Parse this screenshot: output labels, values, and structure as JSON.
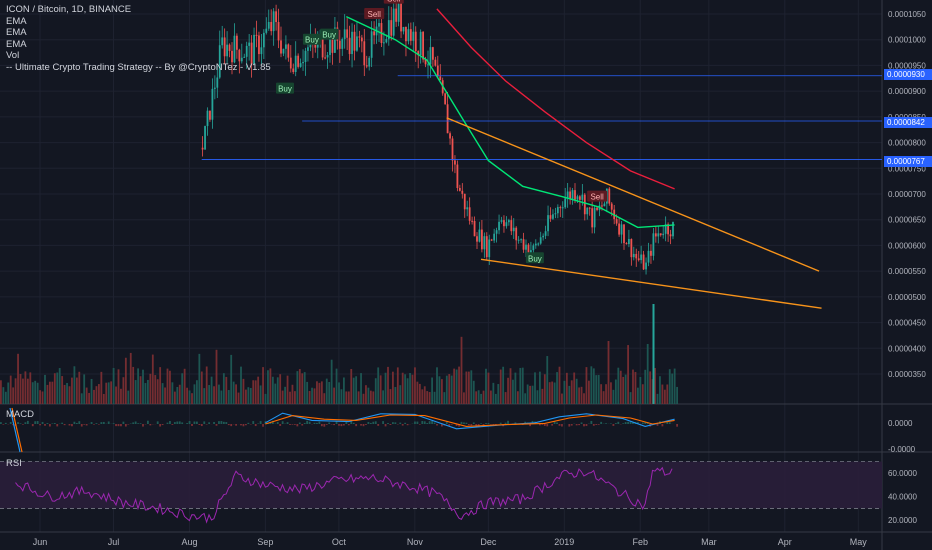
{
  "legend": {
    "symbol": "ICON / Bitcoin, 1D, BINANCE",
    "ema1": "EMA",
    "ema2": "EMA",
    "ema3": "EMA",
    "vol": "Vol",
    "strategy": "-- Ultimate Crypto Trading Strategy -- By @CryptoNTez - V1.85"
  },
  "panes": {
    "macd_label": "MACD",
    "rsi_label": "RSI"
  },
  "price_tags": [
    {
      "value": "0.0000930",
      "price": 9.3e-05
    },
    {
      "value": "0.0000842",
      "price": 8.42e-05
    },
    {
      "value": "0.0000767",
      "price": 7.67e-05
    }
  ],
  "colors": {
    "background": "#131722",
    "bull": "#26a69a",
    "bear": "#ef5350",
    "ema_fast": "#00e676",
    "ema_slow": "#e91e3c",
    "trendline": "#f7931a",
    "hline": "#2962ff",
    "macd": "#2196f3",
    "signal": "#ff6d00",
    "rsi": "#9c27b0",
    "rsi_band": "#2a1e3a"
  },
  "chart_data": [
    {
      "type": "candlestick",
      "title": "ICON / Bitcoin, 1D, BINANCE",
      "x_ticks": [
        "Jun",
        "Jul",
        "Aug",
        "Sep",
        "Oct",
        "Nov",
        "Dec",
        "2019",
        "Feb",
        "Mar",
        "Apr",
        "May"
      ],
      "y_ticks": [
        3.5e-05,
        4e-05,
        4.5e-05,
        5e-05,
        5.5e-05,
        6e-05,
        6.5e-05,
        7e-05,
        7.5e-05,
        8e-05,
        8.5e-05,
        9e-05,
        9.5e-05,
        0.0001,
        0.000105
      ],
      "y_tick_labels": [
        "0.0000350",
        "0.0000400",
        "0.0000450",
        "0.0000500",
        "0.0000550",
        "0.0000600",
        "0.0000650",
        "0.0000700",
        "0.0000750",
        "0.0000800",
        "0.0000850",
        "0.0000900",
        "0.0000950",
        "0.0001000",
        "0.0001050"
      ],
      "ylim": [
        3.25e-05,
        0.000108
      ],
      "close_path": [
        {
          "date": "2018-08-06",
          "close": 7.9e-05
        },
        {
          "date": "2018-08-14",
          "close": 9.9e-05
        },
        {
          "date": "2018-08-26",
          "close": 9.75e-05
        },
        {
          "date": "2018-09-04",
          "close": 0.000103
        },
        {
          "date": "2018-09-10",
          "close": 9.6e-05
        },
        {
          "date": "2018-09-20",
          "close": 9.85e-05
        },
        {
          "date": "2018-10-04",
          "close": 0.0001005
        },
        {
          "date": "2018-10-12",
          "close": 9.75e-05
        },
        {
          "date": "2018-10-24",
          "close": 0.000105
        },
        {
          "date": "2018-11-02",
          "close": 9.95e-05
        },
        {
          "date": "2018-11-08",
          "close": 9.5e-05
        },
        {
          "date": "2018-11-13",
          "close": 8.6e-05
        },
        {
          "date": "2018-11-18",
          "close": 7.2e-05
        },
        {
          "date": "2018-11-24",
          "close": 6.4e-05
        },
        {
          "date": "2018-11-30",
          "close": 5.95e-05
        },
        {
          "date": "2018-12-06",
          "close": 6.6e-05
        },
        {
          "date": "2018-12-12",
          "close": 6.15e-05
        },
        {
          "date": "2018-12-19",
          "close": 5.9e-05
        },
        {
          "date": "2018-12-25",
          "close": 6.4e-05
        },
        {
          "date": "2018-12-31",
          "close": 6.9e-05
        },
        {
          "date": "2019-01-06",
          "close": 7.1e-05
        },
        {
          "date": "2019-01-12",
          "close": 6.5e-05
        },
        {
          "date": "2019-01-18",
          "close": 6.9e-05
        },
        {
          "date": "2019-01-24",
          "close": 6.3e-05
        },
        {
          "date": "2019-01-30",
          "close": 5.75e-05
        },
        {
          "date": "2019-02-03",
          "close": 5.6e-05
        },
        {
          "date": "2019-02-06",
          "close": 6.1e-05
        },
        {
          "date": "2019-02-10",
          "close": 6.35e-05
        },
        {
          "date": "2019-02-15",
          "close": 6.35e-05
        }
      ],
      "ema_fast": [
        {
          "date": "2018-10-04",
          "value": 0.0001045
        },
        {
          "date": "2018-10-24",
          "value": 0.0001
        },
        {
          "date": "2018-11-06",
          "value": 9.6e-05
        },
        {
          "date": "2018-11-20",
          "value": 8.5e-05
        },
        {
          "date": "2018-12-01",
          "value": 7.65e-05
        },
        {
          "date": "2018-12-15",
          "value": 7.15e-05
        },
        {
          "date": "2018-12-31",
          "value": 6.95e-05
        },
        {
          "date": "2019-01-15",
          "value": 6.75e-05
        },
        {
          "date": "2019-01-31",
          "value": 6.35e-05
        },
        {
          "date": "2019-02-15",
          "value": 6.4e-05
        }
      ],
      "ema_slow": [
        {
          "date": "2018-11-10",
          "value": 0.000106
        },
        {
          "date": "2018-11-24",
          "value": 9.85e-05
        },
        {
          "date": "2018-12-08",
          "value": 9.2e-05
        },
        {
          "date": "2018-12-24",
          "value": 8.6e-05
        },
        {
          "date": "2019-01-10",
          "value": 8e-05
        },
        {
          "date": "2019-01-28",
          "value": 7.45e-05
        },
        {
          "date": "2019-02-15",
          "value": 7.1e-05
        }
      ],
      "trendlines": [
        {
          "start": {
            "date": "2018-11-14",
            "value": 8.48e-05
          },
          "end": {
            "date": "2019-04-15",
            "value": 5.5e-05
          }
        },
        {
          "start": {
            "date": "2018-11-28",
            "value": 5.73e-05
          },
          "end": {
            "date": "2019-04-16",
            "value": 4.78e-05
          }
        }
      ],
      "horizontal_lines": [
        {
          "from": "2018-10-25",
          "value": 9.3e-05
        },
        {
          "from": "2018-09-16",
          "value": 8.42e-05
        },
        {
          "from": "2018-08-06",
          "value": 7.67e-05
        }
      ],
      "signals": [
        {
          "label": "Sell",
          "date": "2018-10-15",
          "value": 0.000105
        },
        {
          "label": "Sell",
          "date": "2018-10-23",
          "value": 0.000108
        },
        {
          "label": "Buy",
          "date": "2018-09-20",
          "value": 0.0001
        },
        {
          "label": "Buy",
          "date": "2018-09-27",
          "value": 0.000101
        },
        {
          "label": "Buy",
          "date": "2018-09-09",
          "value": 9.05e-05
        },
        {
          "label": "Buy",
          "date": "2018-12-20",
          "value": 5.75e-05
        },
        {
          "label": "Sell",
          "date": "2019-01-14",
          "value": 6.95e-05
        }
      ],
      "volume_spike": {
        "date": "2019-02-06",
        "relative": 1.0
      }
    },
    {
      "type": "line",
      "title": "MACD",
      "y_tick_labels": [
        "0.0000",
        "-0.0000"
      ],
      "series": [
        {
          "name": "MACD",
          "points": [
            {
              "date": "2018-09-01",
              "value": 0.1
            },
            {
              "date": "2018-09-08",
              "value": 0.9
            },
            {
              "date": "2018-09-20",
              "value": 0.3
            },
            {
              "date": "2018-10-05",
              "value": 0.2
            },
            {
              "date": "2018-10-18",
              "value": 0.85
            },
            {
              "date": "2018-11-01",
              "value": 0.8
            },
            {
              "date": "2018-11-18",
              "value": -0.4
            },
            {
              "date": "2018-12-05",
              "value": -0.1
            },
            {
              "date": "2018-12-20",
              "value": 0.1
            },
            {
              "date": "2018-12-30",
              "value": 0.6
            },
            {
              "date": "2019-01-10",
              "value": 0.85
            },
            {
              "date": "2019-01-25",
              "value": 0.45
            },
            {
              "date": "2019-02-03",
              "value": -0.2
            },
            {
              "date": "2019-02-15",
              "value": 0.4
            }
          ]
        },
        {
          "name": "Signal",
          "points": [
            {
              "date": "2018-09-01",
              "value": 0.0
            },
            {
              "date": "2018-09-12",
              "value": 0.7
            },
            {
              "date": "2018-09-25",
              "value": 0.4
            },
            {
              "date": "2018-10-08",
              "value": 0.3
            },
            {
              "date": "2018-10-22",
              "value": 0.75
            },
            {
              "date": "2018-11-05",
              "value": 0.7
            },
            {
              "date": "2018-11-22",
              "value": -0.2
            },
            {
              "date": "2018-12-08",
              "value": -0.05
            },
            {
              "date": "2018-12-24",
              "value": 0.05
            },
            {
              "date": "2019-01-03",
              "value": 0.5
            },
            {
              "date": "2019-01-14",
              "value": 0.75
            },
            {
              "date": "2019-01-28",
              "value": 0.5
            },
            {
              "date": "2019-02-06",
              "value": 0.0
            },
            {
              "date": "2019-02-15",
              "value": 0.3
            }
          ]
        }
      ]
    },
    {
      "type": "line",
      "title": "RSI",
      "y_ticks": [
        20,
        40,
        60
      ],
      "y_tick_labels": [
        "20.0000",
        "40.0000",
        "60.0000"
      ],
      "ylim": [
        15,
        73
      ],
      "bands": [
        30,
        70
      ],
      "points": [
        {
          "date": "2018-05-22",
          "value": 52
        },
        {
          "date": "2018-06-05",
          "value": 40
        },
        {
          "date": "2018-06-20",
          "value": 45
        },
        {
          "date": "2018-07-05",
          "value": 35
        },
        {
          "date": "2018-07-20",
          "value": 30
        },
        {
          "date": "2018-08-01",
          "value": 24
        },
        {
          "date": "2018-08-10",
          "value": 22
        },
        {
          "date": "2018-08-20",
          "value": 58
        },
        {
          "date": "2018-09-01",
          "value": 50
        },
        {
          "date": "2018-09-15",
          "value": 46
        },
        {
          "date": "2018-10-01",
          "value": 54
        },
        {
          "date": "2018-10-15",
          "value": 56
        },
        {
          "date": "2018-11-01",
          "value": 48
        },
        {
          "date": "2018-11-10",
          "value": 42
        },
        {
          "date": "2018-11-20",
          "value": 24
        },
        {
          "date": "2018-12-01",
          "value": 35
        },
        {
          "date": "2018-12-15",
          "value": 38
        },
        {
          "date": "2018-12-31",
          "value": 58
        },
        {
          "date": "2019-01-10",
          "value": 62
        },
        {
          "date": "2019-01-25",
          "value": 42
        },
        {
          "date": "2019-02-03",
          "value": 32
        },
        {
          "date": "2019-02-06",
          "value": 62
        },
        {
          "date": "2019-02-15",
          "value": 60
        }
      ]
    }
  ]
}
